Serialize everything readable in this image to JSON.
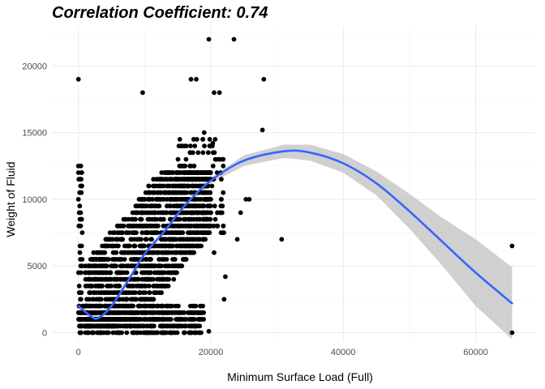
{
  "chart_data": {
    "type": "scatter",
    "title": "Correlation Coefficient: 0.74",
    "xlabel": "Minimum Surface Load (Full)",
    "ylabel": "Weight of Fluid",
    "xlim": [
      -4000,
      69000
    ],
    "ylim": [
      -700,
      23000
    ],
    "x_ticks": [
      0,
      20000,
      40000,
      60000
    ],
    "y_ticks": [
      0,
      5000,
      10000,
      15000,
      20000
    ],
    "x_tick_labels": [
      "0",
      "20000",
      "40000",
      "60000"
    ],
    "y_tick_labels": [
      "0",
      "5000",
      "10000",
      "15000",
      "20000"
    ],
    "grid": true,
    "colors": {
      "points": "#000000",
      "smooth_line": "#3366ff",
      "ribbon": "#c8c8c8"
    },
    "point_clusters": [
      {
        "x_range": [
          0,
          19000
        ],
        "y_range": [
          0,
          2000
        ],
        "approx_count": 600,
        "note": "dense band near baseline"
      },
      {
        "x_range": [
          1000,
          20000
        ],
        "y_range": [
          500,
          12000
        ],
        "approx_count": 1800,
        "note": "main diagonal cloud"
      },
      {
        "x_range": [
          0,
          600
        ],
        "y_range": [
          0,
          12500
        ],
        "approx_count": 60,
        "note": "vertical column at x≈0"
      },
      {
        "x_range": [
          15000,
          22000
        ],
        "y_range": [
          7000,
          14500
        ],
        "approx_count": 150
      }
    ],
    "outlier_points": [
      {
        "x": 0,
        "y": 19000
      },
      {
        "x": 0,
        "y": 12500
      },
      {
        "x": 9700,
        "y": 18000
      },
      {
        "x": 19700,
        "y": 22000
      },
      {
        "x": 23500,
        "y": 22000
      },
      {
        "x": 17000,
        "y": 19000
      },
      {
        "x": 17800,
        "y": 19000
      },
      {
        "x": 28000,
        "y": 19000
      },
      {
        "x": 20500,
        "y": 18000
      },
      {
        "x": 21300,
        "y": 18000
      },
      {
        "x": 27800,
        "y": 15200
      },
      {
        "x": 19000,
        "y": 15000
      },
      {
        "x": 20300,
        "y": 14200
      },
      {
        "x": 25300,
        "y": 10000
      },
      {
        "x": 25800,
        "y": 10000
      },
      {
        "x": 24500,
        "y": 9000
      },
      {
        "x": 24000,
        "y": 7000
      },
      {
        "x": 30700,
        "y": 7000
      },
      {
        "x": 20500,
        "y": 6000
      },
      {
        "x": 22200,
        "y": 4200
      },
      {
        "x": 22000,
        "y": 2500
      },
      {
        "x": 19700,
        "y": 100
      },
      {
        "x": 65500,
        "y": 6500
      },
      {
        "x": 65500,
        "y": 0
      }
    ],
    "smooth_fit": {
      "x": [
        0,
        2000,
        3000,
        5000,
        8000,
        10000,
        13000,
        16000,
        20000,
        25000,
        31000,
        35000,
        40000,
        45000,
        50000,
        55000,
        60000,
        65500
      ],
      "y": [
        2000,
        1200,
        1100,
        2000,
        4300,
        5900,
        7600,
        9500,
        11400,
        12900,
        13600,
        13500,
        12700,
        11200,
        9100,
        6800,
        4500,
        2200
      ],
      "lower": [
        1800,
        1000,
        900,
        1800,
        4100,
        5700,
        7400,
        9300,
        11200,
        12500,
        13100,
        12900,
        12000,
        10300,
        7800,
        5000,
        2000,
        -500
      ],
      "upper": [
        2200,
        1400,
        1300,
        2200,
        4500,
        6100,
        7800,
        9700,
        11600,
        13300,
        14100,
        14100,
        13400,
        12100,
        10400,
        8600,
        7000,
        4900
      ]
    }
  }
}
